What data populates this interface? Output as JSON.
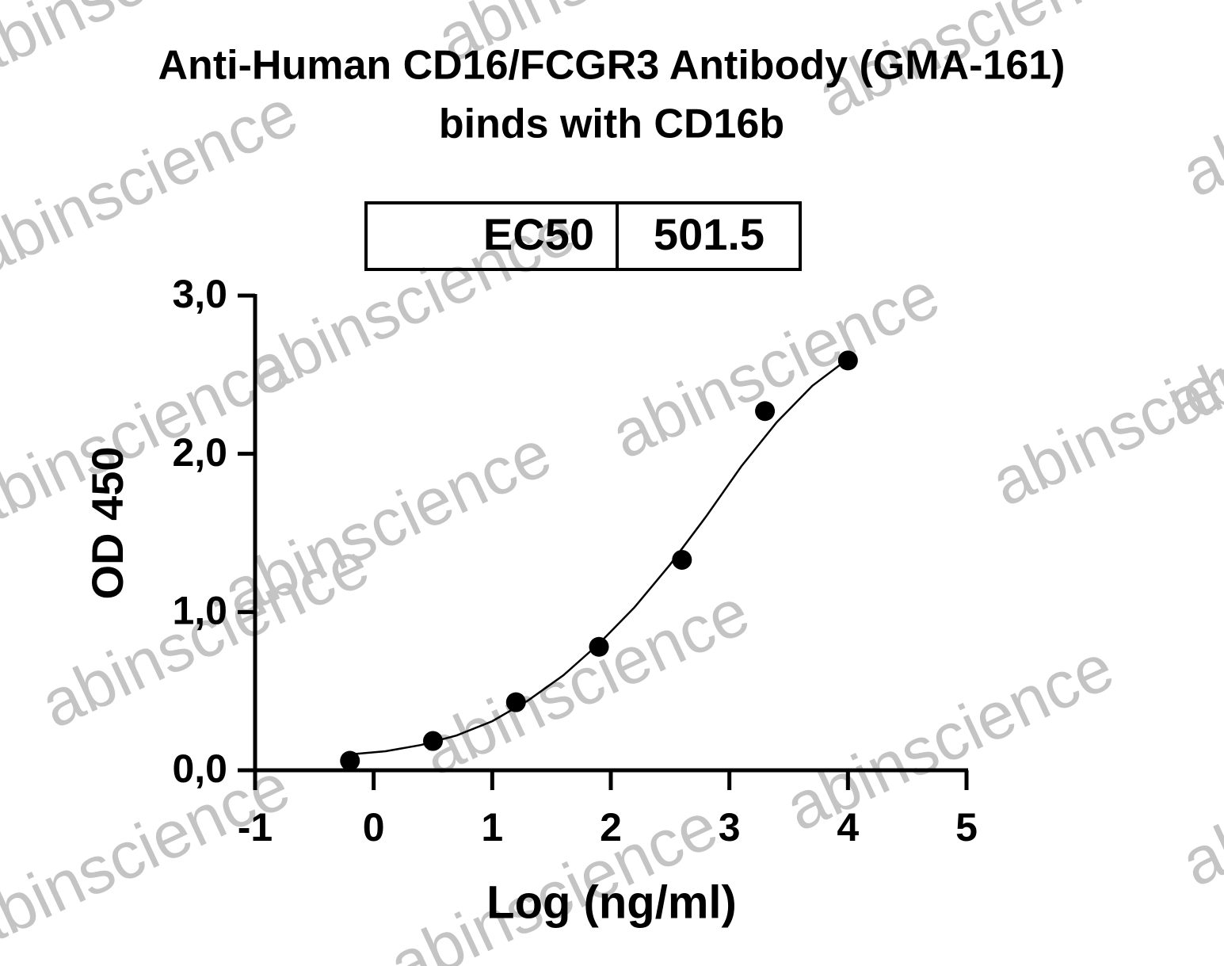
{
  "chart_data": {
    "type": "scatter",
    "title": [
      "Anti-Human CD16/FCGR3 Antibody (GMA-161)",
      "binds with CD16b"
    ],
    "watermark": "abinscience",
    "annotation": {
      "label": "EC50",
      "value_text": "501.5"
    },
    "x_label": "Log (ng/ml)",
    "y_label": "OD 450",
    "xlim": [
      -1,
      5
    ],
    "xticks": [
      -1,
      0,
      1,
      2,
      3,
      4,
      5
    ],
    "ylim": [
      0,
      3
    ],
    "yticks": [
      {
        "value": 0,
        "label": "0,0"
      },
      {
        "value": 1,
        "label": "1,0"
      },
      {
        "value": 2,
        "label": "2,0"
      },
      {
        "value": 3,
        "label": "3,0"
      }
    ],
    "color": "#000000",
    "points": {
      "x": [
        -0.2,
        0.5,
        1.2,
        1.9,
        2.6,
        3.3,
        4.0
      ],
      "values": [
        0.06,
        0.185,
        0.43,
        0.78,
        1.33,
        2.27,
        2.59
      ]
    },
    "fit": {
      "x": [
        -0.2,
        0.1,
        0.4,
        0.7,
        1.0,
        1.3,
        1.6,
        1.9,
        2.2,
        2.5,
        2.8,
        3.1,
        3.4,
        3.7,
        4.0
      ],
      "values": [
        0.1,
        0.12,
        0.16,
        0.22,
        0.31,
        0.44,
        0.6,
        0.8,
        1.03,
        1.3,
        1.6,
        1.92,
        2.2,
        2.43,
        2.6
      ]
    }
  }
}
